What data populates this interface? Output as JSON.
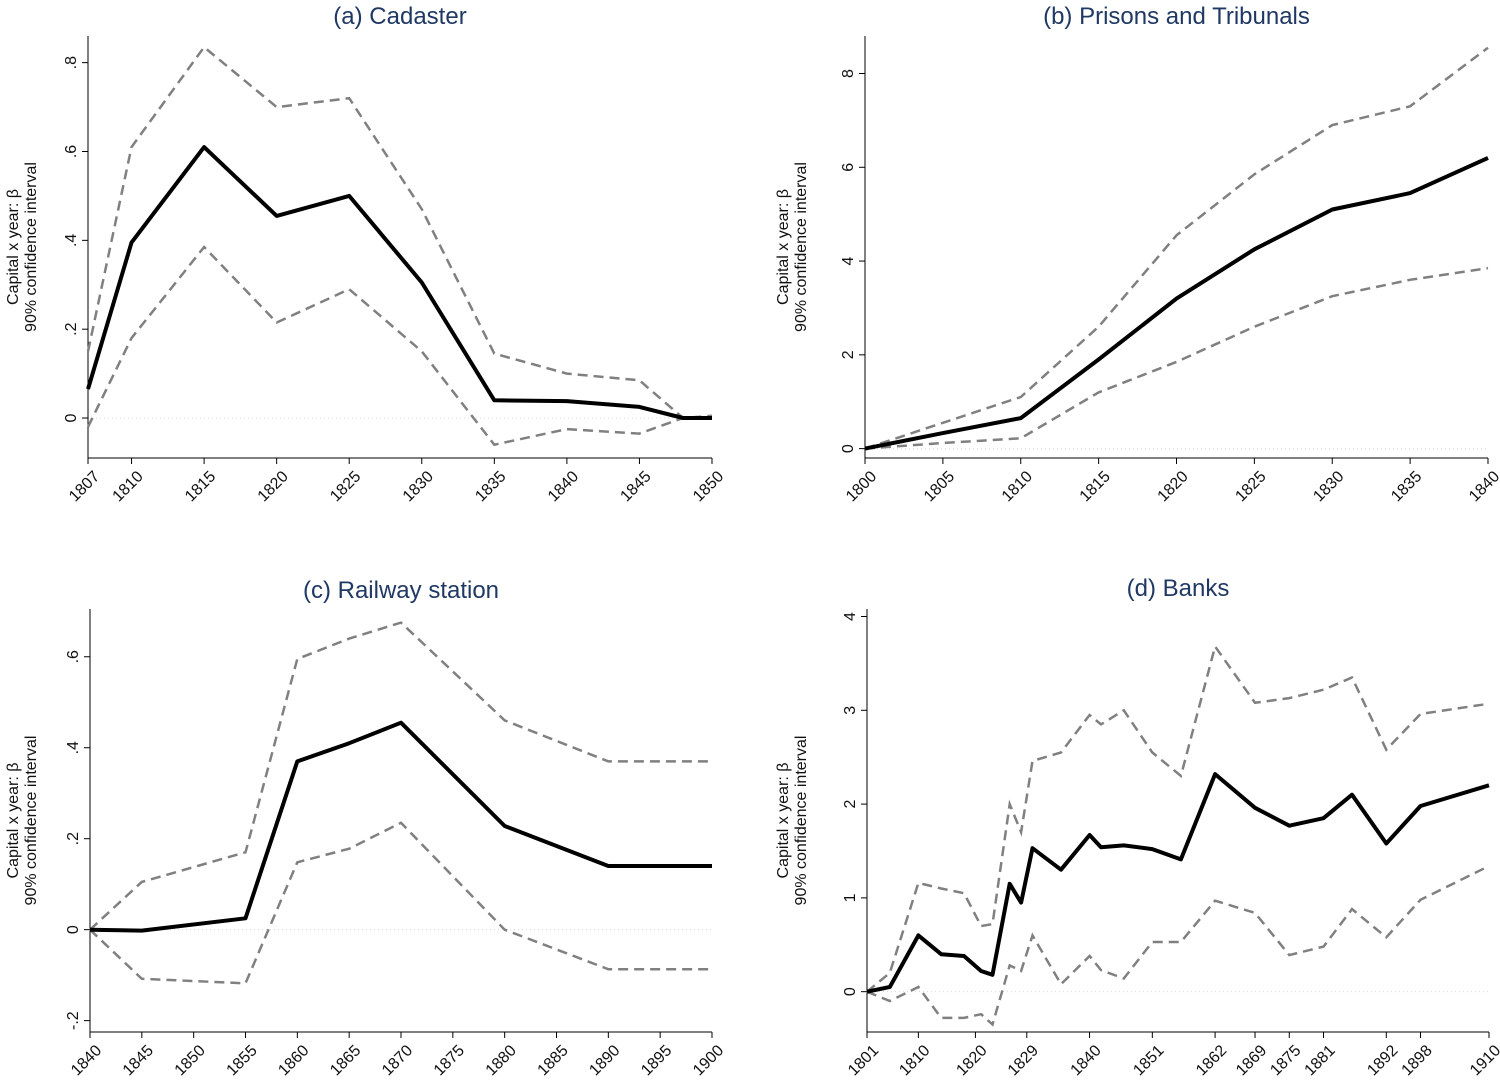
{
  "chart_data": [
    {
      "type": "line",
      "title": "(a) Cadaster",
      "ylabel_line1": "Capital x year: β",
      "ylabel_line2": "90% confidence interval",
      "x": [
        1807,
        1810,
        1815,
        1820,
        1825,
        1830,
        1835,
        1840,
        1845,
        1848,
        1850
      ],
      "xticks": [
        1807,
        1810,
        1815,
        1820,
        1825,
        1830,
        1835,
        1840,
        1845,
        1850
      ],
      "xtick_labels": [
        "1807",
        "1810",
        "1815",
        "1820",
        "1825",
        "1830",
        "1835",
        "1840",
        "1845",
        "1850"
      ],
      "xlim": [
        1807,
        1850
      ],
      "yticks": [
        0,
        0.2,
        0.4,
        0.6,
        0.8
      ],
      "ytick_labels": [
        "0",
        ".2",
        ".4",
        ".6",
        ".8"
      ],
      "ylim": [
        -0.09,
        0.86
      ],
      "series": [
        {
          "role": "estimate",
          "values": [
            0.065,
            0.395,
            0.61,
            0.455,
            0.5,
            0.305,
            0.04,
            0.038,
            0.025,
            0.0,
            0.0
          ]
        },
        {
          "role": "upper",
          "values": [
            0.15,
            0.61,
            0.835,
            0.7,
            0.72,
            0.47,
            0.145,
            0.1,
            0.085,
            0.0,
            0.005
          ]
        },
        {
          "role": "lower",
          "values": [
            -0.02,
            0.18,
            0.385,
            0.215,
            0.29,
            0.15,
            -0.06,
            -0.025,
            -0.035,
            0.0,
            0.0
          ]
        }
      ]
    },
    {
      "type": "line",
      "title": "(b) Prisons and Tribunals",
      "ylabel_line1": "Capital x year: β",
      "ylabel_line2": "90% confidence interval",
      "x": [
        1800,
        1805,
        1810,
        1815,
        1820,
        1825,
        1830,
        1835,
        1840
      ],
      "xticks": [
        1800,
        1805,
        1810,
        1815,
        1820,
        1825,
        1830,
        1835,
        1840
      ],
      "xtick_labels": [
        "1800",
        "1805",
        "1810",
        "1815",
        "1820",
        "1825",
        "1830",
        "1835",
        "1840"
      ],
      "xlim": [
        1800,
        1840
      ],
      "yticks": [
        0,
        2,
        4,
        6,
        8
      ],
      "ytick_labels": [
        "0",
        "2",
        "4",
        "6",
        "8"
      ],
      "ylim": [
        -0.2,
        8.8
      ],
      "series": [
        {
          "role": "estimate",
          "values": [
            0,
            0.33,
            0.65,
            1.9,
            3.2,
            4.25,
            5.1,
            5.45,
            6.2
          ]
        },
        {
          "role": "upper",
          "values": [
            0,
            0.55,
            1.1,
            2.6,
            4.55,
            5.85,
            6.9,
            7.3,
            8.55
          ]
        },
        {
          "role": "lower",
          "values": [
            0,
            0.12,
            0.22,
            1.2,
            1.85,
            2.6,
            3.25,
            3.6,
            3.85
          ]
        }
      ]
    },
    {
      "type": "line",
      "title": "(c) Railway station",
      "ylabel_line1": "Capital x year: β",
      "ylabel_line2": "90% confidence interval",
      "x": [
        1840,
        1845,
        1855,
        1860,
        1865,
        1870,
        1880,
        1890,
        1900
      ],
      "xticks": [
        1840,
        1845,
        1850,
        1855,
        1860,
        1865,
        1870,
        1875,
        1880,
        1885,
        1890,
        1895,
        1900
      ],
      "xtick_labels": [
        "1840",
        "1845",
        "1850",
        "1855",
        "1860",
        "1865",
        "1870",
        "1875",
        "1880",
        "1885",
        "1890",
        "1895",
        "1900"
      ],
      "xlim": [
        1840,
        1900
      ],
      "yticks": [
        -0.2,
        0,
        0.2,
        0.4,
        0.6
      ],
      "ytick_labels": [
        "-.2",
        "0",
        ".2",
        ".4",
        ".6"
      ],
      "ylim": [
        -0.225,
        0.705
      ],
      "series": [
        {
          "role": "estimate",
          "values": [
            0,
            -0.002,
            0.025,
            0.37,
            0.41,
            0.455,
            0.228,
            0.14,
            0.14
          ]
        },
        {
          "role": "upper",
          "values": [
            0,
            0.105,
            0.17,
            0.595,
            0.64,
            0.675,
            0.46,
            0.37,
            0.37
          ]
        },
        {
          "role": "lower",
          "values": [
            0,
            -0.108,
            -0.118,
            0.148,
            0.178,
            0.235,
            0.0,
            -0.087,
            -0.087
          ]
        }
      ]
    },
    {
      "type": "line",
      "title": "(d) Banks",
      "ylabel_line1": "Capital x year: β",
      "ylabel_line2": "90% confidence interval",
      "x": [
        1801,
        1805,
        1810,
        1814,
        1818,
        1821,
        1823,
        1826,
        1828,
        1830,
        1835,
        1840,
        1842,
        1846,
        1851,
        1856,
        1862,
        1869,
        1875,
        1881,
        1886,
        1892,
        1898,
        1910
      ],
      "xticks": [
        1801,
        1810,
        1820,
        1829,
        1840,
        1851,
        1862,
        1869,
        1875,
        1881,
        1892,
        1898,
        1910
      ],
      "xtick_labels": [
        "1801",
        "1810",
        "1820",
        "1829",
        "1840",
        "1851",
        "1862",
        "1869",
        "1875",
        "1881",
        "1892",
        "1898",
        "1910"
      ],
      "xlim": [
        1801,
        1910
      ],
      "yticks": [
        0,
        1,
        2,
        3,
        4
      ],
      "ytick_labels": [
        "0",
        "1",
        "2",
        "3",
        "4"
      ],
      "ylim": [
        -0.43,
        4.08
      ],
      "series": [
        {
          "role": "estimate",
          "values": [
            0,
            0.05,
            0.6,
            0.4,
            0.38,
            0.22,
            0.18,
            1.15,
            0.95,
            1.53,
            1.3,
            1.67,
            1.54,
            1.56,
            1.52,
            1.41,
            2.32,
            1.96,
            1.77,
            1.85,
            2.1,
            1.58,
            1.98,
            2.2
          ]
        },
        {
          "role": "upper",
          "values": [
            0,
            0.2,
            1.16,
            1.1,
            1.05,
            0.7,
            0.72,
            2.0,
            1.7,
            2.46,
            2.55,
            2.95,
            2.85,
            3.0,
            2.55,
            2.3,
            3.68,
            3.08,
            3.13,
            3.22,
            3.35,
            2.58,
            2.96,
            3.07
          ]
        },
        {
          "role": "lower",
          "values": [
            0,
            -0.1,
            0.05,
            -0.28,
            -0.28,
            -0.24,
            -0.35,
            0.28,
            0.22,
            0.6,
            0.08,
            0.38,
            0.23,
            0.14,
            0.53,
            0.53,
            0.97,
            0.84,
            0.39,
            0.48,
            0.88,
            0.58,
            0.98,
            1.34
          ]
        }
      ]
    }
  ]
}
